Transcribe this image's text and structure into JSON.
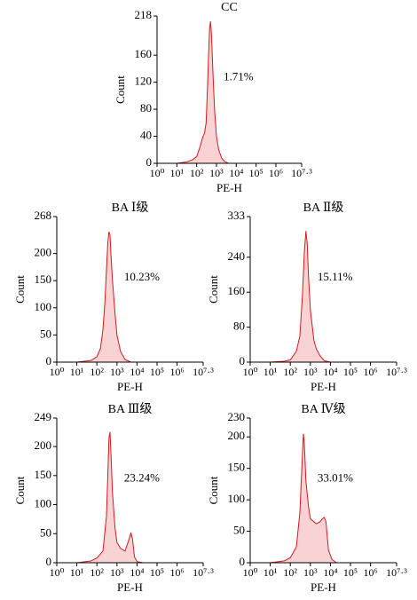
{
  "chart_data": [
    {
      "type": "area",
      "title": "CC",
      "xlabel": "PE-H",
      "ylabel": "Count",
      "annotation": "1.71%",
      "xscale": "log",
      "color": "#d7191c",
      "fill_color": "#f9d3d3",
      "x": [
        10,
        30,
        60,
        100,
        150,
        200,
        250,
        300,
        350,
        400,
        450,
        500,
        560,
        650,
        800,
        1000,
        1300,
        1800,
        2500,
        4000
      ],
      "values": [
        0,
        2,
        5,
        10,
        25,
        38,
        45,
        60,
        110,
        160,
        200,
        210,
        190,
        140,
        80,
        40,
        20,
        8,
        3,
        0
      ],
      "xlim": [
        1,
        19952623
      ],
      "xticks": [
        {
          "value": 1,
          "label": "10⁰"
        },
        {
          "value": 10,
          "label": "10¹"
        },
        {
          "value": 100,
          "label": "10²"
        },
        {
          "value": 1000,
          "label": "10³"
        },
        {
          "value": 10000,
          "label": "10⁴"
        },
        {
          "value": 100000,
          "label": "10⁵"
        },
        {
          "value": 1000000,
          "label": "10⁶"
        },
        {
          "value": 19952623,
          "label": "10⁷·³"
        }
      ],
      "ylim": [
        0,
        218
      ],
      "yticks": [
        0,
        40,
        80,
        120,
        160,
        218
      ]
    },
    {
      "type": "area",
      "title": "BA Ⅰ级",
      "xlabel": "PE-H",
      "ylabel": "Count",
      "annotation": "10.23%",
      "xscale": "log",
      "color": "#d7191c",
      "fill_color": "#f9d3d3",
      "x": [
        10,
        50,
        100,
        150,
        200,
        250,
        300,
        350,
        400,
        450,
        500,
        600,
        800,
        1000,
        1500,
        2500,
        5000
      ],
      "values": [
        0,
        3,
        10,
        25,
        60,
        110,
        170,
        220,
        240,
        235,
        200,
        150,
        90,
        50,
        20,
        5,
        0
      ],
      "xlim": [
        1,
        19952623
      ],
      "xticks": [
        {
          "value": 1,
          "label": "10⁰"
        },
        {
          "value": 10,
          "label": "10¹"
        },
        {
          "value": 100,
          "label": "10²"
        },
        {
          "value": 1000,
          "label": "10³"
        },
        {
          "value": 10000,
          "label": "10⁴"
        },
        {
          "value": 100000,
          "label": "10⁵"
        },
        {
          "value": 1000000,
          "label": "10⁶"
        },
        {
          "value": 19952623,
          "label": "10⁷·³"
        }
      ],
      "ylim": [
        0,
        268
      ],
      "yticks": [
        0,
        50,
        100,
        150,
        200,
        268
      ]
    },
    {
      "type": "area",
      "title": "BA Ⅱ级",
      "xlabel": "PE-H",
      "ylabel": "Count",
      "annotation": "15.11%",
      "xscale": "log",
      "color": "#d7191c",
      "fill_color": "#f9d3d3",
      "x": [
        10,
        50,
        100,
        200,
        300,
        400,
        500,
        600,
        700,
        800,
        1000,
        1500,
        2000,
        3000,
        5000,
        10000
      ],
      "values": [
        0,
        2,
        5,
        25,
        60,
        150,
        250,
        300,
        270,
        200,
        120,
        50,
        30,
        15,
        3,
        0
      ],
      "xlim": [
        1,
        19952623
      ],
      "xticks": [
        {
          "value": 1,
          "label": "10⁰"
        },
        {
          "value": 10,
          "label": "10¹"
        },
        {
          "value": 100,
          "label": "10²"
        },
        {
          "value": 1000,
          "label": "10³"
        },
        {
          "value": 10000,
          "label": "10⁴"
        },
        {
          "value": 100000,
          "label": "10⁵"
        },
        {
          "value": 1000000,
          "label": "10⁶"
        },
        {
          "value": 19952623,
          "label": "10⁷·³"
        }
      ],
      "ylim": [
        0,
        333
      ],
      "yticks": [
        0,
        80,
        160,
        240,
        333
      ]
    },
    {
      "type": "area",
      "title": "BA Ⅲ级",
      "xlabel": "PE-H",
      "ylabel": "Count",
      "annotation": "23.24%",
      "xscale": "log",
      "color": "#d7191c",
      "fill_color": "#f9d3d3",
      "x": [
        10,
        50,
        100,
        200,
        300,
        350,
        400,
        450,
        500,
        600,
        800,
        1000,
        1500,
        2500,
        4000,
        5000,
        6000,
        7500,
        10000,
        20000
      ],
      "values": [
        0,
        3,
        8,
        20,
        80,
        150,
        215,
        225,
        190,
        120,
        60,
        35,
        25,
        20,
        40,
        52,
        40,
        10,
        2,
        0
      ],
      "xlim": [
        1,
        19952623
      ],
      "xticks": [
        {
          "value": 1,
          "label": "10⁰"
        },
        {
          "value": 10,
          "label": "10¹"
        },
        {
          "value": 100,
          "label": "10²"
        },
        {
          "value": 1000,
          "label": "10³"
        },
        {
          "value": 10000,
          "label": "10⁴"
        },
        {
          "value": 100000,
          "label": "10⁵"
        },
        {
          "value": 1000000,
          "label": "10⁶"
        },
        {
          "value": 19952623,
          "label": "10⁷·³"
        }
      ],
      "ylim": [
        0,
        249
      ],
      "yticks": [
        0,
        50,
        100,
        150,
        200,
        249
      ]
    },
    {
      "type": "area",
      "title": "BA Ⅳ级",
      "xlabel": "PE-H",
      "ylabel": "Count",
      "annotation": "33.01%",
      "xscale": "log",
      "color": "#d7191c",
      "fill_color": "#f9d3d3",
      "x": [
        10,
        50,
        100,
        200,
        300,
        400,
        450,
        500,
        600,
        800,
        1000,
        1500,
        2000,
        3000,
        4000,
        5000,
        6000,
        8000,
        12000,
        20000
      ],
      "values": [
        0,
        3,
        8,
        25,
        80,
        170,
        205,
        190,
        130,
        90,
        70,
        65,
        62,
        65,
        70,
        72,
        65,
        20,
        5,
        0
      ],
      "xlim": [
        1,
        19952623
      ],
      "xticks": [
        {
          "value": 1,
          "label": "10⁰"
        },
        {
          "value": 10,
          "label": "10¹"
        },
        {
          "value": 100,
          "label": "10²"
        },
        {
          "value": 1000,
          "label": "10³"
        },
        {
          "value": 10000,
          "label": "10⁴"
        },
        {
          "value": 100000,
          "label": "10⁵"
        },
        {
          "value": 1000000,
          "label": "10⁶"
        },
        {
          "value": 19952623,
          "label": "10⁷·³"
        }
      ],
      "ylim": [
        0,
        230
      ],
      "yticks": [
        0,
        50,
        100,
        150,
        200,
        230
      ]
    }
  ]
}
